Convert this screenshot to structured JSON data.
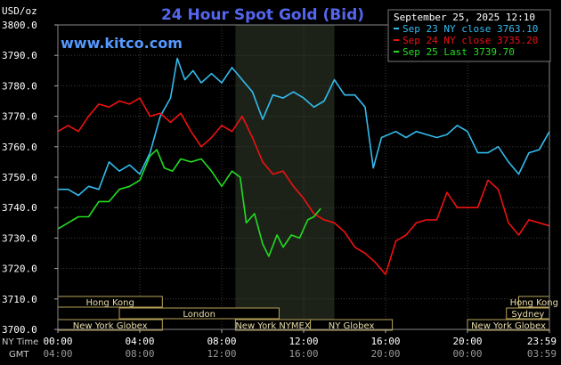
{
  "header": {
    "title": "24 Hour Spot Gold (Bid)",
    "unit_label": "USD/oz",
    "watermark": "www.kitco.com",
    "timestamp": "September 25, 2025 12:10"
  },
  "legend": [
    {
      "label": "Sep 23 NY close 3763.10",
      "color": "#33bbee"
    },
    {
      "label": "Sep 24 NY close 3735.20",
      "color": "#ee1111"
    },
    {
      "label": "Sep 25 Last 3739.70",
      "color": "#22dd22"
    }
  ],
  "sessions": [
    {
      "label": "Hong Kong",
      "start": 0,
      "end": 5.1,
      "row": 0
    },
    {
      "label": "London",
      "start": 3.0,
      "end": 10.8,
      "row": 1
    },
    {
      "label": "New York Globex",
      "start": 0,
      "end": 5.1,
      "row": 2
    },
    {
      "label": "New York NYMEX",
      "start": 8.67,
      "end": 12.33,
      "row": 2
    },
    {
      "label": "NY Globex",
      "start": 12.33,
      "end": 16.33,
      "row": 2
    },
    {
      "label": "Hong Kong",
      "start": 22.5,
      "end": 24,
      "row": 0
    },
    {
      "label": "Sydney",
      "start": 21.9,
      "end": 24,
      "row": 1
    },
    {
      "label": "New York Globex",
      "start": 20.0,
      "end": 24,
      "row": 2
    }
  ],
  "time_axis": {
    "ny_label": "NY Time",
    "gmt_label": "GMT",
    "ny_ticks": [
      "00:00",
      "04:00",
      "08:00",
      "12:00",
      "16:00",
      "20:00",
      "23:59"
    ],
    "gmt_ticks": [
      "04:00",
      "08:00",
      "12:00",
      "16:00",
      "20:00",
      "00:00",
      "03:59"
    ]
  },
  "chart_data": {
    "type": "line",
    "title": "24 Hour Spot Gold (Bid)",
    "ylabel": "USD/oz",
    "xlabel": "NY Time",
    "x_unit": "hours (NY Time)",
    "xlim": [
      0,
      24
    ],
    "ylim": [
      3700,
      3800
    ],
    "yticks": [
      3700,
      3710,
      3720,
      3730,
      3740,
      3750,
      3760,
      3770,
      3780,
      3790,
      3800
    ],
    "ytick_labels": [
      "3700.0",
      "3710.0",
      "3720.0",
      "3730.0",
      "3740.0",
      "3750.0",
      "3760.0",
      "3770.0",
      "3780.0",
      "3790.0",
      "3800.0"
    ],
    "shaded_range": [
      8.67,
      13.5
    ],
    "grid": true,
    "legend_position": "top-right",
    "series": [
      {
        "name": "Sep 23 NY close 3763.10",
        "color": "#33bbee",
        "points": [
          [
            0,
            3746
          ],
          [
            0.5,
            3746
          ],
          [
            1,
            3744
          ],
          [
            1.5,
            3747
          ],
          [
            2,
            3746
          ],
          [
            2.5,
            3755
          ],
          [
            3,
            3752
          ],
          [
            3.5,
            3754
          ],
          [
            4,
            3751
          ],
          [
            4.5,
            3758
          ],
          [
            5,
            3770
          ],
          [
            5.5,
            3776
          ],
          [
            5.83,
            3789
          ],
          [
            6.2,
            3782
          ],
          [
            6.6,
            3785
          ],
          [
            7,
            3781
          ],
          [
            7.5,
            3784
          ],
          [
            8,
            3781
          ],
          [
            8.5,
            3786
          ],
          [
            9,
            3782
          ],
          [
            9.5,
            3778
          ],
          [
            10,
            3769
          ],
          [
            10.5,
            3777
          ],
          [
            11,
            3776
          ],
          [
            11.5,
            3778
          ],
          [
            12,
            3776
          ],
          [
            12.5,
            3773
          ],
          [
            13,
            3775
          ],
          [
            13.5,
            3782
          ],
          [
            14,
            3777
          ],
          [
            14.5,
            3777
          ],
          [
            15,
            3773
          ],
          [
            15.4,
            3753
          ],
          [
            15.8,
            3763
          ],
          [
            16.5,
            3765
          ],
          [
            17,
            3763
          ],
          [
            17.5,
            3765
          ],
          [
            18,
            3764
          ],
          [
            18.5,
            3763
          ],
          [
            19,
            3764
          ],
          [
            19.5,
            3767
          ],
          [
            20,
            3765
          ],
          [
            20.5,
            3758
          ],
          [
            21,
            3758
          ],
          [
            21.5,
            3760
          ],
          [
            22,
            3755
          ],
          [
            22.5,
            3751
          ],
          [
            23,
            3758
          ],
          [
            23.5,
            3759
          ],
          [
            24,
            3765
          ]
        ]
      },
      {
        "name": "Sep 24 NY close 3735.20",
        "color": "#ee1111",
        "points": [
          [
            0,
            3765
          ],
          [
            0.5,
            3767
          ],
          [
            1,
            3765
          ],
          [
            1.5,
            3770
          ],
          [
            2,
            3774
          ],
          [
            2.5,
            3773
          ],
          [
            3,
            3775
          ],
          [
            3.5,
            3774
          ],
          [
            4,
            3776
          ],
          [
            4.5,
            3770
          ],
          [
            5,
            3771
          ],
          [
            5.5,
            3768
          ],
          [
            6,
            3771
          ],
          [
            6.5,
            3765
          ],
          [
            7,
            3760
          ],
          [
            7.5,
            3763
          ],
          [
            8,
            3767
          ],
          [
            8.5,
            3765
          ],
          [
            9,
            3770
          ],
          [
            9.5,
            3763
          ],
          [
            10,
            3755
          ],
          [
            10.5,
            3751
          ],
          [
            11,
            3752
          ],
          [
            11.5,
            3747
          ],
          [
            12,
            3743
          ],
          [
            12.5,
            3738
          ],
          [
            13,
            3736
          ],
          [
            13.5,
            3735
          ],
          [
            14,
            3732
          ],
          [
            14.5,
            3727
          ],
          [
            15,
            3725
          ],
          [
            15.5,
            3722
          ],
          [
            16,
            3718
          ],
          [
            16.5,
            3729
          ],
          [
            17,
            3731
          ],
          [
            17.5,
            3735
          ],
          [
            18,
            3736
          ],
          [
            18.5,
            3736
          ],
          [
            19,
            3745
          ],
          [
            19.5,
            3740
          ],
          [
            20,
            3740
          ],
          [
            20.5,
            3740
          ],
          [
            21,
            3749
          ],
          [
            21.5,
            3746
          ],
          [
            22,
            3735
          ],
          [
            22.5,
            3731
          ],
          [
            23,
            3736
          ],
          [
            23.5,
            3735
          ],
          [
            24,
            3734
          ]
        ]
      },
      {
        "name": "Sep 25 Last 3739.70",
        "color": "#22dd22",
        "points": [
          [
            0,
            3733
          ],
          [
            0.5,
            3735
          ],
          [
            1,
            3737
          ],
          [
            1.5,
            3737
          ],
          [
            2,
            3742
          ],
          [
            2.5,
            3742
          ],
          [
            3,
            3746
          ],
          [
            3.5,
            3747
          ],
          [
            4,
            3749
          ],
          [
            4.5,
            3757
          ],
          [
            4.83,
            3759
          ],
          [
            5.2,
            3753
          ],
          [
            5.6,
            3752
          ],
          [
            6,
            3756
          ],
          [
            6.5,
            3755
          ],
          [
            7,
            3756
          ],
          [
            7.5,
            3752
          ],
          [
            8,
            3747
          ],
          [
            8.5,
            3752
          ],
          [
            8.9,
            3750
          ],
          [
            9.2,
            3735
          ],
          [
            9.6,
            3738
          ],
          [
            10,
            3728
          ],
          [
            10.3,
            3724
          ],
          [
            10.7,
            3731
          ],
          [
            11,
            3727
          ],
          [
            11.4,
            3731
          ],
          [
            11.8,
            3730
          ],
          [
            12.2,
            3736
          ],
          [
            12.5,
            3737
          ],
          [
            12.83,
            3739.7
          ]
        ]
      }
    ]
  }
}
